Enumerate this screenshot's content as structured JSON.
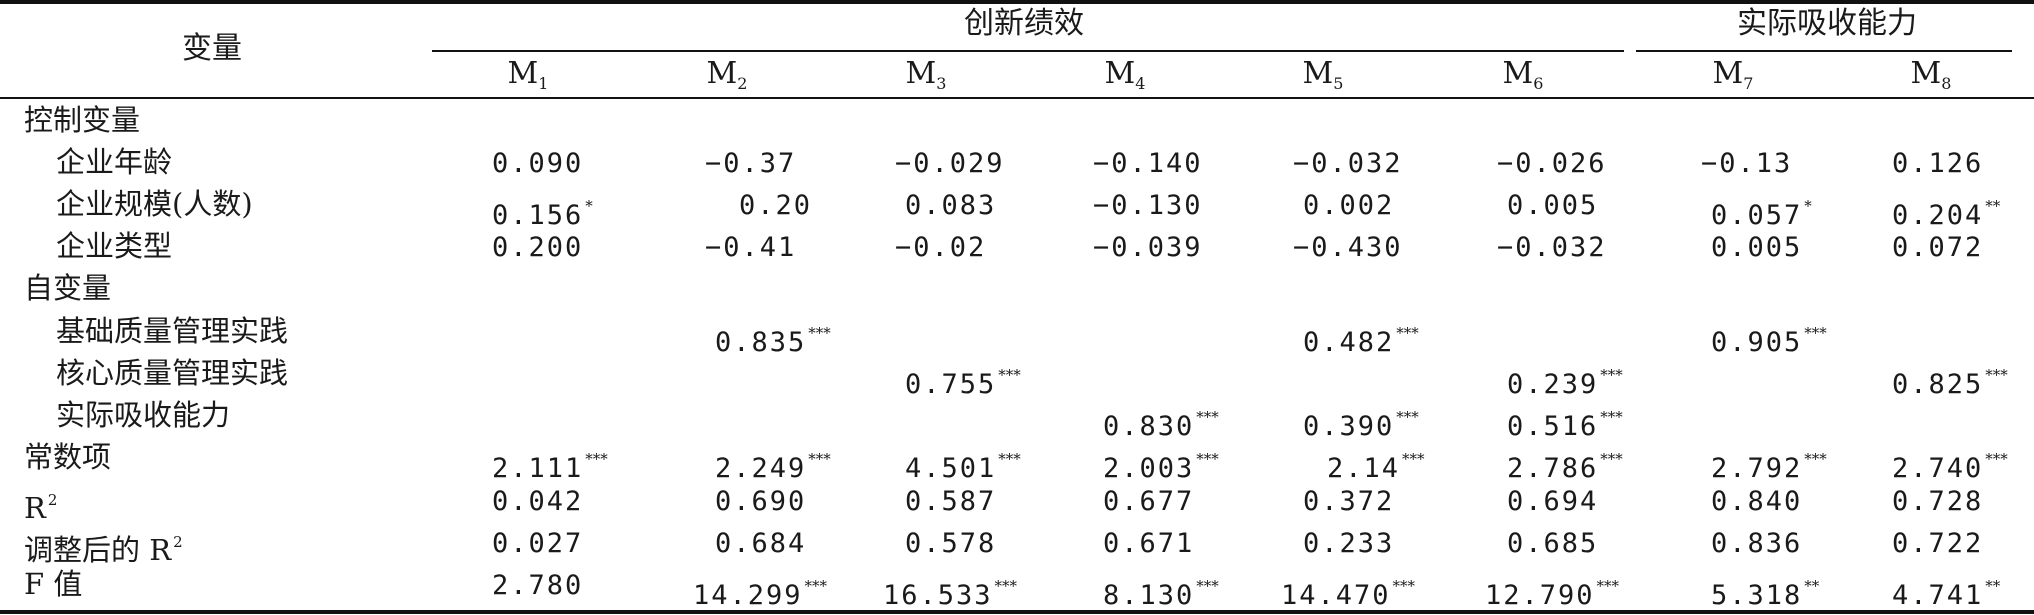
{
  "header": {
    "variable": "变量",
    "group1": "创新绩效",
    "group2": "实际吸收能力",
    "models": [
      {
        "base": "M",
        "sub": "1"
      },
      {
        "base": "M",
        "sub": "2"
      },
      {
        "base": "M",
        "sub": "3"
      },
      {
        "base": "M",
        "sub": "4"
      },
      {
        "base": "M",
        "sub": "5"
      },
      {
        "base": "M",
        "sub": "6"
      },
      {
        "base": "M",
        "sub": "7"
      },
      {
        "base": "M",
        "sub": "8"
      }
    ]
  },
  "rows": [
    {
      "label": "控制变量",
      "indent": false,
      "cells": [
        null,
        null,
        null,
        null,
        null,
        null,
        null,
        null
      ]
    },
    {
      "label": "企业年龄",
      "indent": true,
      "cells": [
        {
          "v": "0.090",
          "s": ""
        },
        {
          "v": "−0.37",
          "s": ""
        },
        {
          "v": "−0.029",
          "s": ""
        },
        {
          "v": "−0.140",
          "s": ""
        },
        {
          "v": "−0.032",
          "s": ""
        },
        {
          "v": "−0.026",
          "s": ""
        },
        {
          "v": "−0.13",
          "s": ""
        },
        {
          "v": "0.126",
          "s": ""
        }
      ]
    },
    {
      "label": "企业规模(人数)",
      "indent": true,
      "cells": [
        {
          "v": "0.156",
          "s": "*"
        },
        {
          "v": "0.20",
          "s": ""
        },
        {
          "v": "0.083",
          "s": ""
        },
        {
          "v": "−0.130",
          "s": ""
        },
        {
          "v": "0.002",
          "s": ""
        },
        {
          "v": "0.005",
          "s": ""
        },
        {
          "v": "0.057",
          "s": "*"
        },
        {
          "v": "0.204",
          "s": "**"
        }
      ]
    },
    {
      "label": "企业类型",
      "indent": true,
      "cells": [
        {
          "v": "0.200",
          "s": ""
        },
        {
          "v": "−0.41",
          "s": ""
        },
        {
          "v": "−0.02",
          "s": ""
        },
        {
          "v": "−0.039",
          "s": ""
        },
        {
          "v": "−0.430",
          "s": ""
        },
        {
          "v": "−0.032",
          "s": ""
        },
        {
          "v": "0.005",
          "s": ""
        },
        {
          "v": "0.072",
          "s": ""
        }
      ]
    },
    {
      "label": "自变量",
      "indent": false,
      "cells": [
        null,
        null,
        null,
        null,
        null,
        null,
        null,
        null
      ]
    },
    {
      "label": "基础质量管理实践",
      "indent": true,
      "cells": [
        null,
        {
          "v": "0.835",
          "s": "***"
        },
        null,
        null,
        {
          "v": "0.482",
          "s": "***"
        },
        null,
        {
          "v": "0.905",
          "s": "***"
        },
        null
      ]
    },
    {
      "label": "核心质量管理实践",
      "indent": true,
      "cells": [
        null,
        null,
        {
          "v": "0.755",
          "s": "***"
        },
        null,
        null,
        {
          "v": "0.239",
          "s": "***"
        },
        null,
        {
          "v": "0.825",
          "s": "***"
        }
      ]
    },
    {
      "label": "实际吸收能力",
      "indent": true,
      "cells": [
        null,
        null,
        null,
        {
          "v": "0.830",
          "s": "***"
        },
        {
          "v": "0.390",
          "s": "***"
        },
        {
          "v": "0.516",
          "s": "***"
        },
        null,
        null
      ]
    },
    {
      "label": "常数项",
      "indent": false,
      "cells": [
        {
          "v": "2.111",
          "s": "***"
        },
        {
          "v": "2.249",
          "s": "***"
        },
        {
          "v": "4.501",
          "s": "***"
        },
        {
          "v": "2.003",
          "s": "***"
        },
        {
          "v": "2.14",
          "s": "***"
        },
        {
          "v": "2.786",
          "s": "***"
        },
        {
          "v": "2.792",
          "s": "***"
        },
        {
          "v": "2.740",
          "s": "***"
        }
      ]
    },
    {
      "label": "R",
      "labelSup": "2",
      "indent": false,
      "cells": [
        {
          "v": "0.042",
          "s": ""
        },
        {
          "v": "0.690",
          "s": ""
        },
        {
          "v": "0.587",
          "s": ""
        },
        {
          "v": "0.677",
          "s": ""
        },
        {
          "v": "0.372",
          "s": ""
        },
        {
          "v": "0.694",
          "s": ""
        },
        {
          "v": "0.840",
          "s": ""
        },
        {
          "v": "0.728",
          "s": ""
        }
      ]
    },
    {
      "label": "调整后的 R",
      "labelSup": "2",
      "indent": false,
      "cells": [
        {
          "v": "0.027",
          "s": ""
        },
        {
          "v": "0.684",
          "s": ""
        },
        {
          "v": "0.578",
          "s": ""
        },
        {
          "v": "0.671",
          "s": ""
        },
        {
          "v": "0.233",
          "s": ""
        },
        {
          "v": "0.685",
          "s": ""
        },
        {
          "v": "0.836",
          "s": ""
        },
        {
          "v": "0.722",
          "s": ""
        }
      ]
    },
    {
      "label": "F 值",
      "indent": false,
      "cells": [
        {
          "v": "2.780",
          "s": ""
        },
        {
          "v": "14.299",
          "s": "***"
        },
        {
          "v": "16.533",
          "s": "***"
        },
        {
          "v": "8.130",
          "s": "***"
        },
        {
          "v": "14.470",
          "s": "***"
        },
        {
          "v": "12.790",
          "s": "***"
        },
        {
          "v": "5.318",
          "s": "**"
        },
        {
          "v": "4.741",
          "s": "**"
        }
      ]
    }
  ]
}
